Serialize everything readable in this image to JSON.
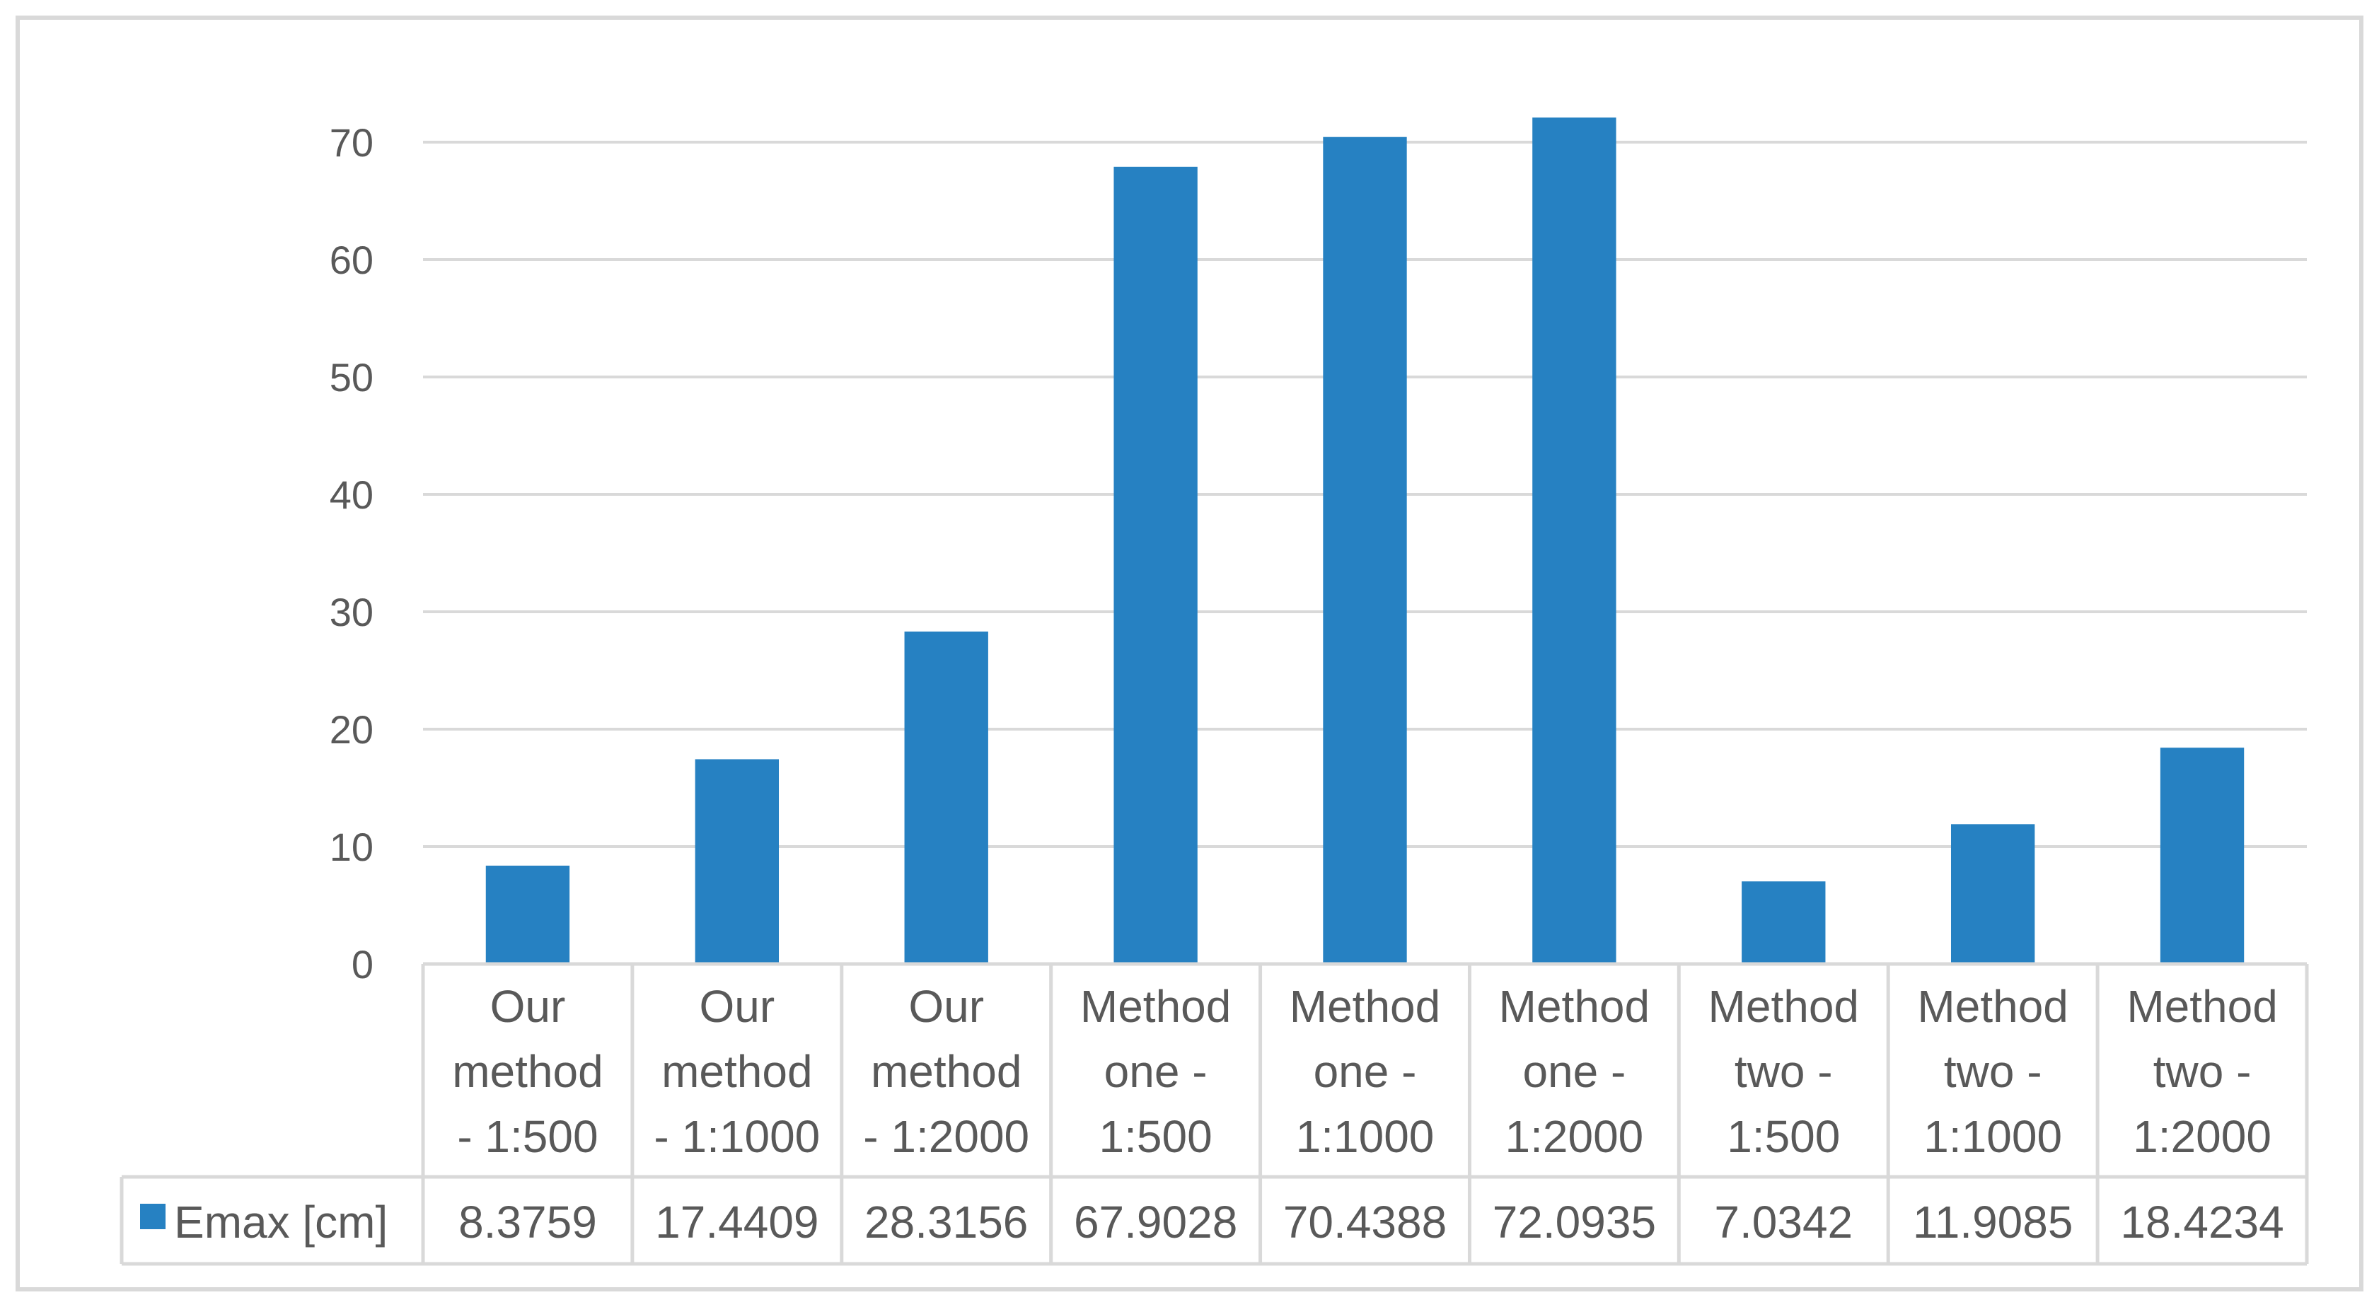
{
  "chart_data": {
    "type": "bar",
    "categories": [
      [
        "Our",
        "method",
        "- 1:500"
      ],
      [
        "Our",
        "method",
        "- 1:1000"
      ],
      [
        "Our",
        "method",
        "- 1:2000"
      ],
      [
        "Method",
        "one -",
        "1:500"
      ],
      [
        "Method",
        "one -",
        "1:1000"
      ],
      [
        "Method",
        "one -",
        "1:2000"
      ],
      [
        "Method",
        "two -",
        "1:500"
      ],
      [
        "Method",
        "two -",
        "1:1000"
      ],
      [
        "Method",
        "two -",
        "1:2000"
      ]
    ],
    "series": [
      {
        "name": "Emax [cm]",
        "color": "#2681c2",
        "values": [
          8.3759,
          17.4409,
          28.3156,
          67.9028,
          70.4388,
          72.0935,
          7.0342,
          11.9085,
          18.4234
        ],
        "value_labels": [
          "8.3759",
          "17.4409",
          "28.3156",
          "67.9028",
          "70.4388",
          "72.0935",
          "7.0342",
          "11.9085",
          "18.4234"
        ]
      }
    ],
    "yticks": [
      0,
      10,
      20,
      30,
      40,
      50,
      60,
      70
    ],
    "ylim": [
      0,
      70
    ],
    "grid": true,
    "legend": "data-table",
    "gridline_color": "#d9d9d9",
    "text_color": "#595959"
  }
}
